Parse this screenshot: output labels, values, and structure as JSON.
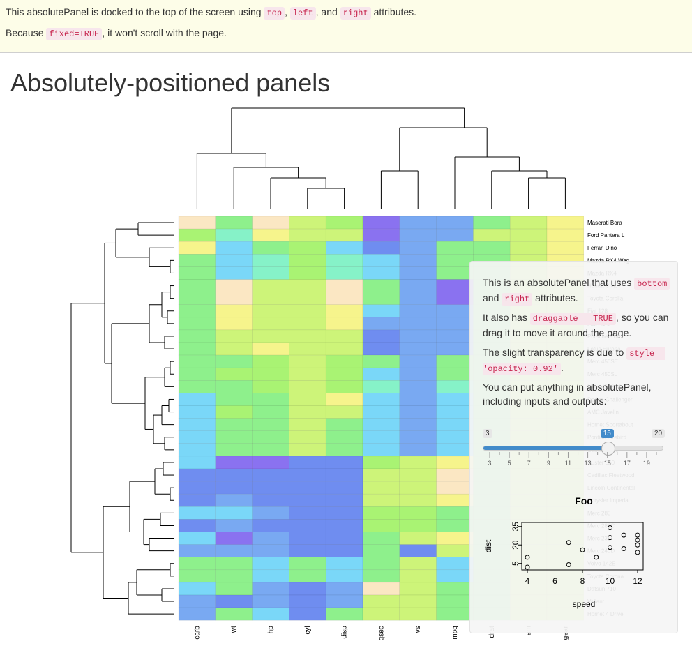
{
  "topbar": {
    "line1": {
      "t1": "This absolutePanel is docked to the top of the screen using ",
      "c1": "top",
      "t2": ", ",
      "c2": "left",
      "t3": ", and ",
      "c3": "right",
      "t4": " attributes."
    },
    "line2": {
      "t1": "Because ",
      "c1": "fixed=TRUE",
      "t2": ", it won't scroll with the page."
    }
  },
  "page_title": "Absolutely-positioned panels",
  "heatmap": {
    "columns": [
      "carb",
      "wt",
      "hp",
      "cyl",
      "disp",
      "qsec",
      "vs",
      "mpg",
      "drat",
      "am",
      "gear"
    ],
    "rows": [
      "Maserati Bora",
      "Ford Pantera L",
      "Ferrari Dino",
      "Mazda RX4 Wag",
      "Mazda RX4",
      "Honda Civic",
      "Toyota Corolla",
      "Fiat 128",
      "Fiat X1-9",
      "Porsche 914-2",
      "Lotus Europa",
      "Merc 450SE",
      "Merc 450SL",
      "Merc 450SLC",
      "Dodge Challenger",
      "AMC Javelin",
      "Hornet Sportabout",
      "Pontiac Firebird",
      "Camaro Z28",
      "Duster 360",
      "Cadillac Fleetwood",
      "Lincoln Continental",
      "Chrysler Imperial",
      "Merc 280",
      "Merc 280C",
      "Merc 230",
      "Merc 240D",
      "Volvo 142E",
      "Toyota Corona",
      "Datsun 710",
      "Valiant",
      "Hornet 4 Drive"
    ],
    "palette": {
      "v1": "#8a72f0",
      "v2": "#6f8df0",
      "v3": "#79a9f2",
      "v4": "#7ad7f8",
      "v5": "#86f2c8",
      "v6": "#8ef08c",
      "v7": "#a9f373",
      "v8": "#cdf479",
      "v9": "#f6f48c",
      "v10": "#fbe7c3"
    }
  },
  "panel": {
    "p1": {
      "t1": "This is an absolutePanel that uses ",
      "c1": "bottom",
      "t2": " and ",
      "c2": "right",
      "t3": " attributes."
    },
    "p2": {
      "t1": "It also has ",
      "c1": "draggable = TRUE",
      "t2": ", so you can drag it to move it around the page."
    },
    "p3": {
      "t1": "The slight transparency is due to ",
      "c1": "style = 'opacity: 0.92'",
      "t2": "."
    },
    "p4": "You can put anything in absolutePanel, including inputs and outputs:",
    "slider": {
      "min": 3,
      "max": 20,
      "value": 15,
      "min_label": "3",
      "max_label": "20",
      "value_label": "15",
      "tick_labels": [
        "3",
        "5",
        "7",
        "9",
        "11",
        "13",
        "15",
        "17",
        "19"
      ]
    },
    "plot": {
      "title": "Foo",
      "xlabel": "speed",
      "ylabel": "dist",
      "x_ticks": [
        "4",
        "6",
        "8",
        "10",
        "12"
      ],
      "y_ticks": [
        "5",
        "20",
        "35"
      ],
      "points": [
        [
          4,
          2
        ],
        [
          4,
          10
        ],
        [
          7,
          4
        ],
        [
          7,
          22
        ],
        [
          8,
          16
        ],
        [
          9,
          10
        ],
        [
          10,
          18
        ],
        [
          10,
          26
        ],
        [
          10,
          34
        ],
        [
          11,
          17
        ],
        [
          11,
          28
        ],
        [
          12,
          14
        ],
        [
          12,
          20
        ],
        [
          12,
          24
        ],
        [
          12,
          28
        ]
      ]
    }
  }
}
